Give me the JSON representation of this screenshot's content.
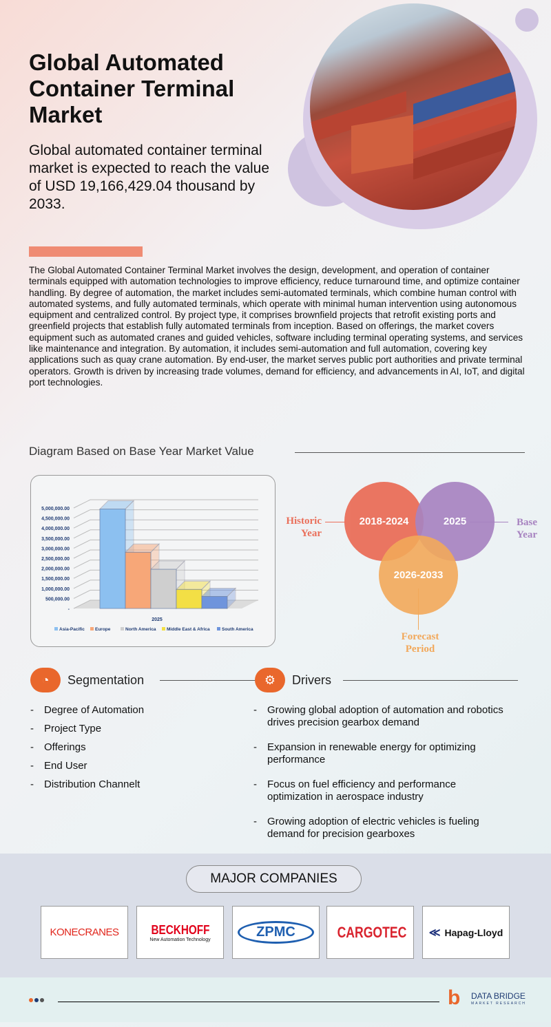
{
  "header": {
    "title": "Global Automated Container Terminal Market",
    "subtitle": "Global automated container terminal market is expected to reach the value of USD 19,166,429.04 thousand by 2033."
  },
  "description": "The Global Automated Container Terminal Market involves the design, development, and operation of container terminals equipped with automation technologies to improve efficiency, reduce turnaround time, and optimize container handling. By degree of automation, the market includes semi-automated terminals, which combine human control with automated systems, and fully automated terminals, which operate with minimal human intervention using autonomous equipment and centralized control. By project type, it comprises brownfield projects that retrofit existing ports and greenfield projects that establish fully automated terminals from inception. Based on offerings, the market covers equipment such as automated cranes and guided vehicles, software including terminal operating systems, and services like maintenance and integration. By automation, it includes semi-automation and full automation, covering key applications such as quay crane automation. By end-user, the market serves public port authorities and private terminal operators. Growth is driven by increasing trade volumes, demand for efficiency, and advancements in AI, IoT, and digital port technologies.",
  "diagram_title": "Diagram Based on Base Year Market Value",
  "chart_data": {
    "type": "bar",
    "categories": [
      "2025"
    ],
    "xlabel": "2025",
    "ylim": [
      0,
      5000000
    ],
    "yticks": [
      "-",
      "500,000.00",
      "1,000,000.00",
      "1,500,000.00",
      "2,000,000.00",
      "2,500,000.00",
      "3,000,000.00",
      "3,500,000.00",
      "4,000,000.00",
      "4,500,000.00",
      "5,000,000.00"
    ],
    "series": [
      {
        "name": "Asia-Pacific",
        "values": [
          4950000
        ],
        "color": "#8cc0f0"
      },
      {
        "name": "Europe",
        "values": [
          2800000
        ],
        "color": "#f7a778"
      },
      {
        "name": "North America",
        "values": [
          1950000
        ],
        "color": "#cfcfcf"
      },
      {
        "name": "Middle East & Africa",
        "values": [
          950000
        ],
        "color": "#f3df45"
      },
      {
        "name": "South America",
        "values": [
          600000
        ],
        "color": "#6f94dc"
      }
    ],
    "legend": "bottom"
  },
  "venn": {
    "historic": "2018-2024",
    "base": "2025",
    "forecast": "2026-2033",
    "historic_label": "Historic Year",
    "base_label": "Base Year",
    "forecast_label": "Forecast Period",
    "colors": {
      "historic": "#ea6f5a",
      "base": "#a783c0",
      "forecast": "#f2a85a"
    }
  },
  "segmentation": {
    "title": "Segmentation",
    "items": [
      "Degree of Automation",
      "Project Type",
      "Offerings",
      "End User",
      "Distribution Channelt"
    ]
  },
  "drivers": {
    "title": "Drivers",
    "items": [
      "Growing global adoption of automation and robotics drives precision gearbox demand",
      "Expansion in renewable energy for optimizing performance",
      "Focus on fuel efficiency and performance optimization in aerospace industry",
      "Growing adoption of electric vehicles is fueling demand for precision gearboxes"
    ]
  },
  "companies": {
    "title": "MAJOR COMPANIES",
    "logos": [
      "KONECRANES",
      "BECKHOFF",
      "New Automation Technology",
      "ZPMC",
      "CARGOTEC",
      "Hapag-Lloyd"
    ]
  },
  "footer": {
    "brand": "DATA BRIDGE",
    "tagline": "MARKET RESEARCH"
  }
}
